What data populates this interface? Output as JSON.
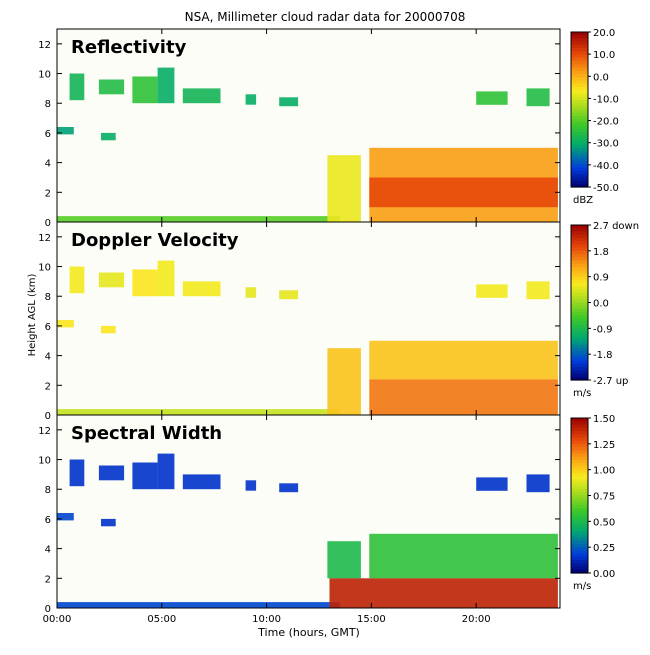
{
  "title": "NSA, Millimeter cloud radar data for 20000708",
  "xlabel": "Time (hours, GMT)",
  "ylabel": "Height AGL (km)",
  "x_ticks": [
    "00:00",
    "05:00",
    "10:00",
    "15:00",
    "20:00"
  ],
  "y_ticks": [
    "0",
    "2",
    "4",
    "6",
    "8",
    "10",
    "12"
  ],
  "chart_data": [
    {
      "type": "heatmap",
      "title": "Reflectivity",
      "xlim": [
        0,
        24
      ],
      "ylim": [
        0,
        13
      ],
      "colorbar": {
        "ticks": [
          "20.0",
          "10.0",
          "0.0",
          "-10.0",
          "-20.0",
          "-30.0",
          "-40.0",
          "-50.0"
        ],
        "unit": "dBZ",
        "range": [
          -50,
          20
        ]
      },
      "regions": [
        {
          "x": [
            0.6,
            1.3
          ],
          "y": [
            8.2,
            10.0
          ],
          "value": -28
        },
        {
          "x": [
            2.0,
            3.2
          ],
          "y": [
            8.6,
            9.6
          ],
          "value": -26
        },
        {
          "x": [
            3.6,
            4.8
          ],
          "y": [
            8.0,
            9.8
          ],
          "value": -24
        },
        {
          "x": [
            4.8,
            5.6
          ],
          "y": [
            8.0,
            10.4
          ],
          "value": -30
        },
        {
          "x": [
            6.0,
            7.8
          ],
          "y": [
            8.0,
            9.0
          ],
          "value": -28
        },
        {
          "x": [
            9.0,
            9.5
          ],
          "y": [
            7.9,
            8.6
          ],
          "value": -30
        },
        {
          "x": [
            10.6,
            11.5
          ],
          "y": [
            7.8,
            8.4
          ],
          "value": -30
        },
        {
          "x": [
            0.0,
            0.8
          ],
          "y": [
            5.9,
            6.4
          ],
          "value": -32
        },
        {
          "x": [
            2.1,
            2.8
          ],
          "y": [
            5.5,
            6.0
          ],
          "value": -30
        },
        {
          "x": [
            20.0,
            21.5
          ],
          "y": [
            7.9,
            8.8
          ],
          "value": -24
        },
        {
          "x": [
            22.4,
            23.5
          ],
          "y": [
            7.8,
            9.0
          ],
          "value": -26
        },
        {
          "x": [
            0.0,
            13.5
          ],
          "y": [
            0.0,
            0.4
          ],
          "value": -20
        },
        {
          "x": [
            12.9,
            14.5
          ],
          "y": [
            0.0,
            4.5
          ],
          "value": -8
        },
        {
          "x": [
            14.9,
            23.9
          ],
          "y": [
            0.0,
            5.0
          ],
          "value": 2
        },
        {
          "x": [
            14.9,
            23.9
          ],
          "y": [
            1.0,
            3.0
          ],
          "value": 10
        }
      ]
    },
    {
      "type": "heatmap",
      "title": "Doppler Velocity",
      "xlim": [
        0,
        24
      ],
      "ylim": [
        0,
        13
      ],
      "colorbar": {
        "ticks": [
          "2.7 down",
          "1.8",
          "0.9",
          "0.0",
          "-0.9",
          "-1.8",
          "-2.7 up"
        ],
        "unit": "m/s",
        "range": [
          -2.7,
          2.7
        ]
      },
      "regions": [
        {
          "x": [
            0.6,
            1.3
          ],
          "y": [
            8.2,
            10.0
          ],
          "value": 0.6
        },
        {
          "x": [
            2.0,
            3.2
          ],
          "y": [
            8.6,
            9.6
          ],
          "value": 0.5
        },
        {
          "x": [
            3.6,
            4.8
          ],
          "y": [
            8.0,
            9.8
          ],
          "value": 0.7
        },
        {
          "x": [
            4.8,
            5.6
          ],
          "y": [
            8.0,
            10.4
          ],
          "value": 0.6
        },
        {
          "x": [
            6.0,
            7.8
          ],
          "y": [
            8.0,
            9.0
          ],
          "value": 0.6
        },
        {
          "x": [
            9.0,
            9.5
          ],
          "y": [
            7.9,
            8.6
          ],
          "value": 0.5
        },
        {
          "x": [
            10.6,
            11.5
          ],
          "y": [
            7.8,
            8.4
          ],
          "value": 0.5
        },
        {
          "x": [
            0.0,
            0.8
          ],
          "y": [
            5.9,
            6.4
          ],
          "value": 0.7
        },
        {
          "x": [
            2.1,
            2.8
          ],
          "y": [
            5.5,
            6.0
          ],
          "value": 0.7
        },
        {
          "x": [
            20.0,
            21.5
          ],
          "y": [
            7.9,
            8.8
          ],
          "value": 0.6
        },
        {
          "x": [
            22.4,
            23.5
          ],
          "y": [
            7.8,
            9.0
          ],
          "value": 0.6
        },
        {
          "x": [
            0.0,
            13.5
          ],
          "y": [
            0.0,
            0.4
          ],
          "value": 0.3
        },
        {
          "x": [
            12.9,
            14.5
          ],
          "y": [
            0.0,
            4.5
          ],
          "value": 1.0
        },
        {
          "x": [
            14.9,
            23.9
          ],
          "y": [
            2.4,
            5.0
          ],
          "value": 1.0
        },
        {
          "x": [
            14.9,
            23.9
          ],
          "y": [
            0.0,
            2.4
          ],
          "value": 1.6
        }
      ]
    },
    {
      "type": "heatmap",
      "title": "Spectral Width",
      "xlim": [
        0,
        24
      ],
      "ylim": [
        0,
        13
      ],
      "colorbar": {
        "ticks": [
          "1.50",
          "1.25",
          "1.00",
          "0.75",
          "0.50",
          "0.25",
          "0.00"
        ],
        "unit": "m/s",
        "range": [
          0,
          1.5
        ]
      },
      "regions": [
        {
          "x": [
            0.6,
            1.3
          ],
          "y": [
            8.2,
            10.0
          ],
          "value": 0.15
        },
        {
          "x": [
            2.0,
            3.2
          ],
          "y": [
            8.6,
            9.6
          ],
          "value": 0.15
        },
        {
          "x": [
            3.6,
            4.8
          ],
          "y": [
            8.0,
            9.8
          ],
          "value": 0.15
        },
        {
          "x": [
            4.8,
            5.6
          ],
          "y": [
            8.0,
            10.4
          ],
          "value": 0.15
        },
        {
          "x": [
            6.0,
            7.8
          ],
          "y": [
            8.0,
            9.0
          ],
          "value": 0.15
        },
        {
          "x": [
            9.0,
            9.5
          ],
          "y": [
            7.9,
            8.6
          ],
          "value": 0.15
        },
        {
          "x": [
            10.6,
            11.5
          ],
          "y": [
            7.8,
            8.4
          ],
          "value": 0.15
        },
        {
          "x": [
            0.0,
            0.8
          ],
          "y": [
            5.9,
            6.4
          ],
          "value": 0.2
        },
        {
          "x": [
            2.1,
            2.8
          ],
          "y": [
            5.5,
            6.0
          ],
          "value": 0.15
        },
        {
          "x": [
            20.0,
            21.5
          ],
          "y": [
            7.9,
            8.8
          ],
          "value": 0.15
        },
        {
          "x": [
            22.4,
            23.5
          ],
          "y": [
            7.8,
            9.0
          ],
          "value": 0.15
        },
        {
          "x": [
            0.0,
            13.5
          ],
          "y": [
            0.0,
            0.4
          ],
          "value": 0.2
        },
        {
          "x": [
            12.9,
            14.5
          ],
          "y": [
            2.0,
            4.5
          ],
          "value": 0.5
        },
        {
          "x": [
            14.9,
            23.9
          ],
          "y": [
            2.0,
            5.0
          ],
          "value": 0.55
        },
        {
          "x": [
            13.0,
            23.9
          ],
          "y": [
            0.0,
            2.0
          ],
          "value": 1.4
        }
      ]
    }
  ]
}
